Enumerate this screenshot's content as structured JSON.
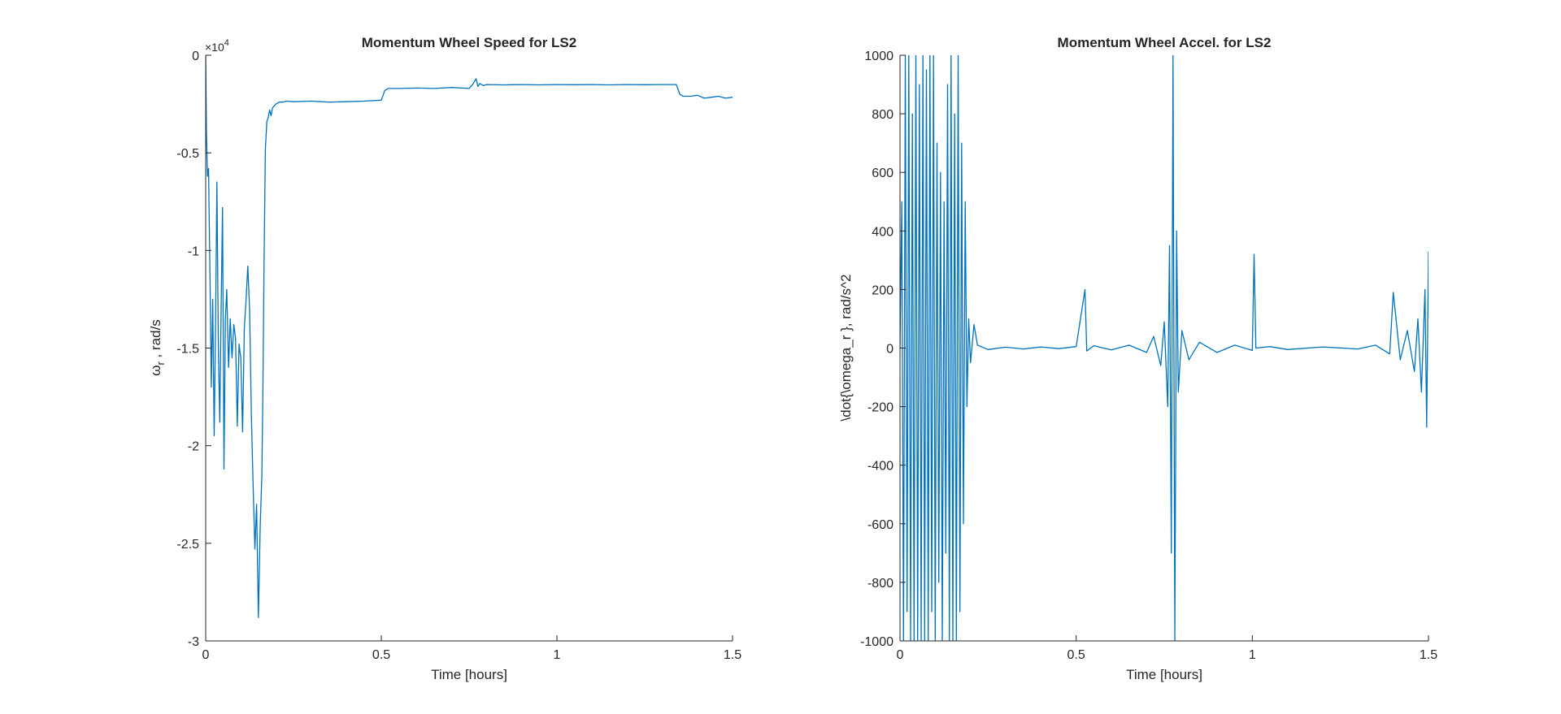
{
  "chart_data": [
    {
      "type": "line",
      "title": "Momentum Wheel Speed for LS2",
      "xlabel": "Time [hours]",
      "ylabel": "ω_r , rad/s",
      "ylabel_main": "ω",
      "ylabel_sub": "r",
      "ylabel_rest": " , rad/s",
      "exponent_label": "×10",
      "exponent_power": "4",
      "xlim": [
        0,
        1.5
      ],
      "ylim": [
        -30000,
        0
      ],
      "xticks": [
        0,
        0.5,
        1,
        1.5
      ],
      "xtick_labels": [
        "0",
        "0.5",
        "1",
        "1.5"
      ],
      "yticks": [
        0,
        -5000,
        -10000,
        -15000,
        -20000,
        -25000,
        -30000
      ],
      "ytick_labels": [
        "0",
        "-0.5",
        "-1",
        "-1.5",
        "-2",
        "-2.5",
        "-3"
      ],
      "line_color": "#0072BD",
      "series": [
        {
          "x": [
            0,
            0.002,
            0.005,
            0.008,
            0.012,
            0.016,
            0.02,
            0.024,
            0.028,
            0.032,
            0.036,
            0.04,
            0.044,
            0.048,
            0.052,
            0.056,
            0.06,
            0.065,
            0.07,
            0.075,
            0.08,
            0.085,
            0.09,
            0.095,
            0.1,
            0.105,
            0.11,
            0.115,
            0.12,
            0.125,
            0.13,
            0.135,
            0.14,
            0.145,
            0.15,
            0.155,
            0.158,
            0.16,
            0.163,
            0.166,
            0.17,
            0.174,
            0.178,
            0.182,
            0.186,
            0.19,
            0.2,
            0.21,
            0.22,
            0.23,
            0.25,
            0.3,
            0.35,
            0.4,
            0.45,
            0.5,
            0.51,
            0.52,
            0.55,
            0.6,
            0.65,
            0.7,
            0.75,
            0.76,
            0.77,
            0.775,
            0.78,
            0.79,
            0.8,
            0.85,
            0.9,
            0.95,
            1.0,
            1.05,
            1.1,
            1.15,
            1.2,
            1.25,
            1.3,
            1.34,
            1.35,
            1.36,
            1.38,
            1.4,
            1.42,
            1.44,
            1.46,
            1.48,
            1.5
          ],
          "y": [
            0,
            -4000,
            -6200,
            -5800,
            -11000,
            -17000,
            -12500,
            -19500,
            -14000,
            -6500,
            -15000,
            -18800,
            -13000,
            -7800,
            -21200,
            -13500,
            -12000,
            -16000,
            -13500,
            -15500,
            -13800,
            -14500,
            -19000,
            -14800,
            -15500,
            -19300,
            -14000,
            -12500,
            -10800,
            -13000,
            -18500,
            -22000,
            -25300,
            -23000,
            -28800,
            -24200,
            -22500,
            -21500,
            -17000,
            -11000,
            -4800,
            -3400,
            -3200,
            -2800,
            -3100,
            -2700,
            -2500,
            -2400,
            -2400,
            -2350,
            -2380,
            -2350,
            -2400,
            -2380,
            -2350,
            -2300,
            -1800,
            -1700,
            -1700,
            -1680,
            -1700,
            -1650,
            -1700,
            -1500,
            -1200,
            -1600,
            -1450,
            -1550,
            -1500,
            -1520,
            -1500,
            -1520,
            -1500,
            -1510,
            -1500,
            -1520,
            -1500,
            -1510,
            -1500,
            -1500,
            -2000,
            -2100,
            -2100,
            -2050,
            -2200,
            -2150,
            -2100,
            -2200,
            -2150
          ]
        }
      ]
    },
    {
      "type": "line",
      "title": "Momentum Wheel Accel. for LS2",
      "xlabel": "Time [hours]",
      "ylabel": "\\dot{\\omega_r }, rad/s^2",
      "xlim": [
        0,
        1.5
      ],
      "ylim": [
        -1000,
        1000
      ],
      "xticks": [
        0,
        0.5,
        1,
        1.5
      ],
      "xtick_labels": [
        "0",
        "0.5",
        "1",
        "1.5"
      ],
      "yticks": [
        1000,
        800,
        600,
        400,
        200,
        0,
        -200,
        -400,
        -600,
        -800,
        -1000
      ],
      "ytick_labels": [
        "1000",
        "800",
        "600",
        "400",
        "200",
        "0",
        "-200",
        "-400",
        "-600",
        "-800",
        "-1000"
      ],
      "line_color": "#0072BD",
      "series": [
        {
          "x": [
            0,
            0.005,
            0.01,
            0.015,
            0.02,
            0.025,
            0.03,
            0.035,
            0.04,
            0.045,
            0.05,
            0.055,
            0.06,
            0.065,
            0.07,
            0.075,
            0.08,
            0.085,
            0.09,
            0.095,
            0.1,
            0.105,
            0.11,
            0.115,
            0.12,
            0.125,
            0.13,
            0.135,
            0.14,
            0.145,
            0.15,
            0.155,
            0.16,
            0.165,
            0.17,
            0.175,
            0.18,
            0.185,
            0.19,
            0.195,
            0.2,
            0.21,
            0.22,
            0.23,
            0.25,
            0.3,
            0.35,
            0.4,
            0.45,
            0.5,
            0.525,
            0.53,
            0.55,
            0.6,
            0.65,
            0.7,
            0.72,
            0.74,
            0.75,
            0.76,
            0.765,
            0.77,
            0.775,
            0.78,
            0.785,
            0.79,
            0.8,
            0.82,
            0.85,
            0.9,
            0.95,
            1.0,
            1.005,
            1.01,
            1.05,
            1.1,
            1.2,
            1.3,
            1.35,
            1.39,
            1.4,
            1.42,
            1.44,
            1.46,
            1.47,
            1.48,
            1.49,
            1.495,
            1.5
          ],
          "y": [
            0,
            500,
            -1000,
            1000,
            -900,
            1000,
            -1000,
            800,
            -1000,
            1000,
            -1000,
            900,
            -1000,
            1000,
            -1000,
            950,
            -1000,
            1000,
            -900,
            1000,
            -1000,
            700,
            -800,
            600,
            -1000,
            500,
            -700,
            900,
            -1000,
            1000,
            -1000,
            800,
            -1000,
            1000,
            -900,
            700,
            -600,
            500,
            -200,
            100,
            -50,
            80,
            10,
            5,
            -5,
            3,
            -3,
            4,
            -2,
            5,
            200,
            -10,
            8,
            -6,
            10,
            -15,
            40,
            -60,
            90,
            -200,
            350,
            -700,
            1000,
            -1000,
            400,
            -150,
            60,
            -40,
            20,
            -15,
            10,
            -8,
            320,
            0,
            5,
            -5,
            4,
            -3,
            10,
            -20,
            190,
            -40,
            60,
            -80,
            100,
            -150,
            200,
            -270,
            330
          ]
        }
      ]
    }
  ]
}
